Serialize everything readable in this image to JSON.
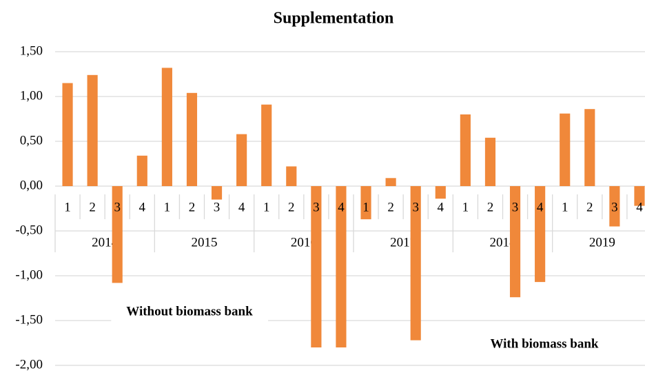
{
  "chart_data": {
    "type": "bar",
    "title": "Supplementation",
    "categories": [
      "1",
      "2",
      "3",
      "4",
      "1",
      "2",
      "3",
      "4",
      "1",
      "2",
      "3",
      "4",
      "1",
      "2",
      "3",
      "4",
      "1",
      "2",
      "3",
      "4",
      "1",
      "2",
      "3",
      "4"
    ],
    "category_groups": [
      "2014",
      "2015",
      "2016",
      "2017",
      "2018",
      "2019"
    ],
    "values": [
      1.15,
      1.24,
      -1.08,
      0.34,
      1.32,
      1.04,
      -0.15,
      0.58,
      0.91,
      0.22,
      -1.8,
      -1.8,
      -0.37,
      0.09,
      -1.72,
      -0.14,
      0.8,
      0.54,
      -1.24,
      -1.07,
      0.81,
      0.86,
      -0.45,
      -0.22
    ],
    "color": "#f0883a",
    "ylim": [
      -2,
      1.5
    ],
    "yticks": [
      {
        "value": -2,
        "label": "-2,00"
      },
      {
        "value": -1.5,
        "label": "-1,50"
      },
      {
        "value": -1,
        "label": "-1,00"
      },
      {
        "value": -0.5,
        "label": "-0,50"
      },
      {
        "value": 0,
        "label": "0,00"
      },
      {
        "value": 0.5,
        "label": "0,50"
      },
      {
        "value": 1,
        "label": "1,00"
      },
      {
        "value": 1.5,
        "label": "1,50"
      }
    ],
    "grid": true,
    "annotations": [
      "Without biomass bank",
      "With biomass bank"
    ]
  }
}
